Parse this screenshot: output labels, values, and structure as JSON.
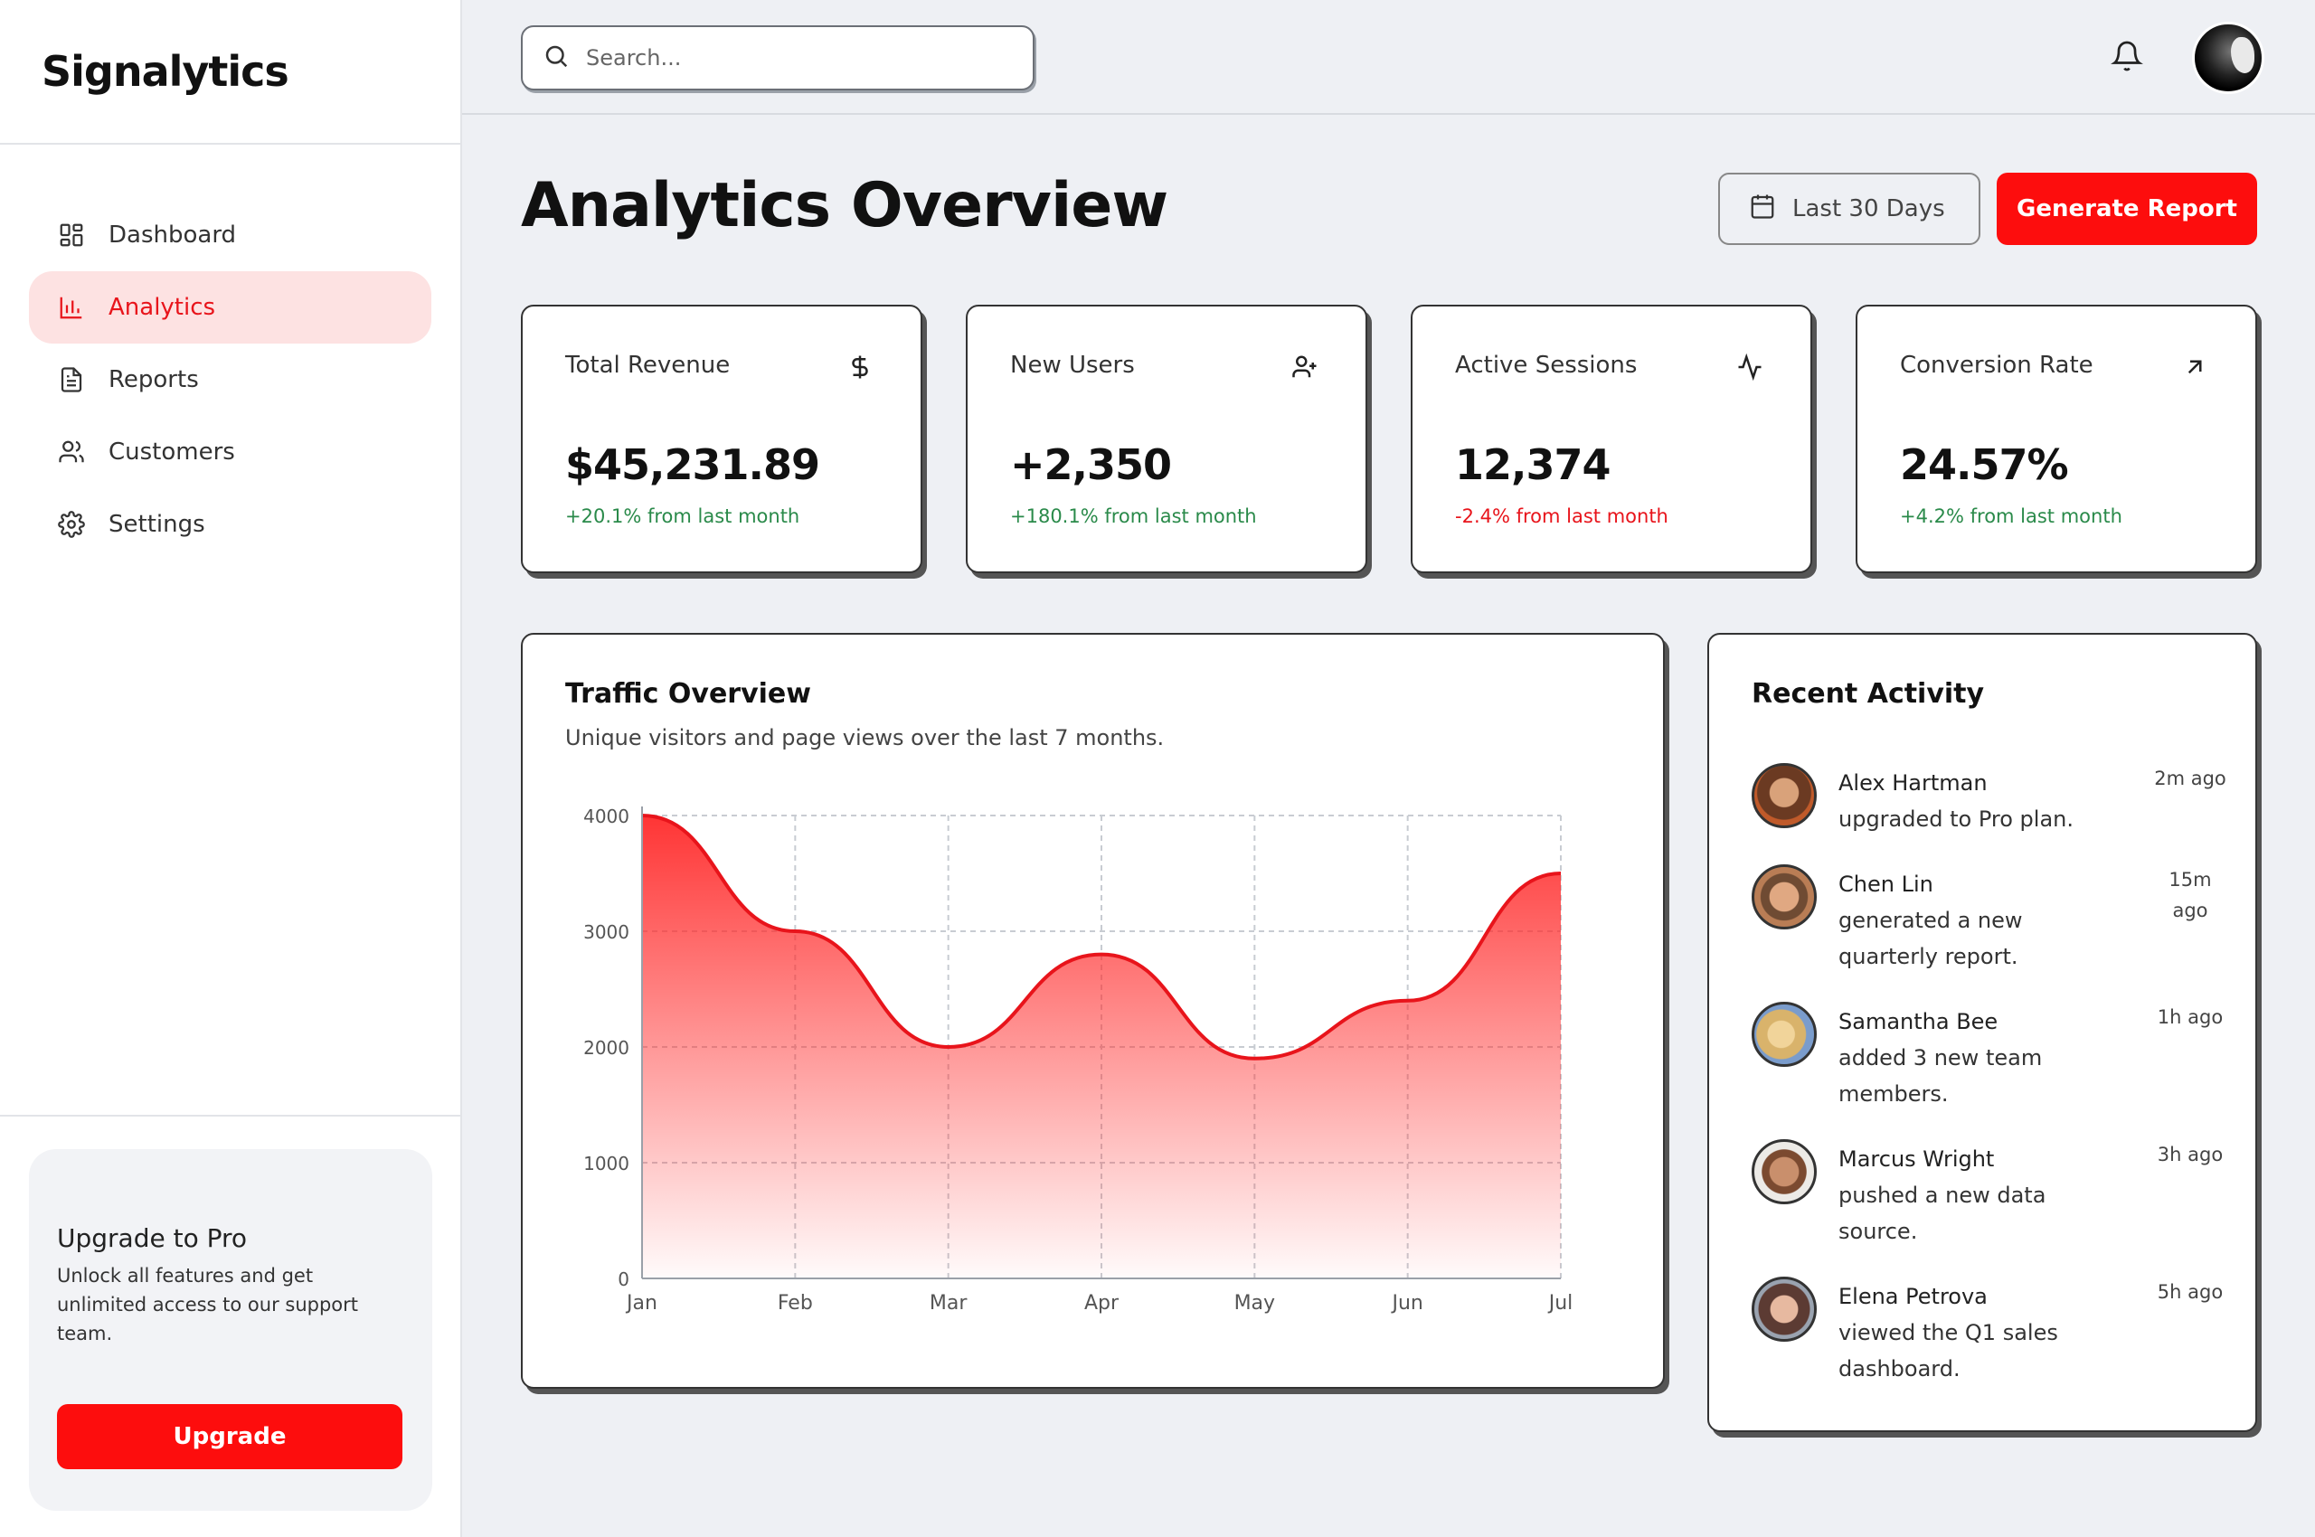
{
  "brand": "Signalytics",
  "sidebar": {
    "items": [
      {
        "label": "Dashboard",
        "icon": "grid-icon"
      },
      {
        "label": "Analytics",
        "icon": "bar-chart-icon",
        "active": true
      },
      {
        "label": "Reports",
        "icon": "file-text-icon"
      },
      {
        "label": "Customers",
        "icon": "users-icon"
      },
      {
        "label": "Settings",
        "icon": "gear-icon"
      }
    ],
    "promo": {
      "title": "Upgrade to Pro",
      "text": "Unlock all features and get unlimited access to our support team.",
      "button": "Upgrade"
    }
  },
  "header": {
    "search_placeholder": "Search..."
  },
  "page": {
    "title": "Analytics Overview",
    "date_range": "Last 30 Days",
    "generate_label": "Generate Report"
  },
  "stats": [
    {
      "label": "Total Revenue",
      "value": "$45,231.89",
      "delta": "+20.1% from last month",
      "icon": "dollar-icon"
    },
    {
      "label": "New Users",
      "value": "+2,350",
      "delta": "+180.1% from last month",
      "icon": "user-plus-icon"
    },
    {
      "label": "Active Sessions",
      "value": "12,374",
      "delta": "-2.4% from last month",
      "icon": "activity-icon"
    },
    {
      "label": "Conversion Rate",
      "value": "24.57%",
      "delta": "+4.2% from last month",
      "icon": "arrow-up-right-icon"
    }
  ],
  "chart_card": {
    "title": "Traffic Overview",
    "subtitle": "Unique visitors and page views over the last 7 months."
  },
  "chart_data": {
    "type": "area",
    "categories": [
      "Jan",
      "Feb",
      "Mar",
      "Apr",
      "May",
      "Jun",
      "Jul"
    ],
    "series": [
      {
        "values": [
          4000,
          3000,
          2000,
          2800,
          1900,
          2400,
          3500
        ]
      }
    ],
    "yticks": [
      "0",
      "1000",
      "2000",
      "3000",
      "4000"
    ],
    "ylim": [
      0,
      4000
    ],
    "grid": true,
    "color": "#e8141b"
  },
  "activity": {
    "title": "Recent Activity",
    "items": [
      {
        "name": "Alex Hartman",
        "action": "upgraded to Pro plan.",
        "time": "2m ago"
      },
      {
        "name": "Chen Lin",
        "action": "generated a new quarterly report.",
        "time": "15m ago"
      },
      {
        "name": "Samantha Bee",
        "action": "added 3 new team members.",
        "time": "1h ago"
      },
      {
        "name": "Marcus Wright",
        "action": "pushed a new data source.",
        "time": "3h ago"
      },
      {
        "name": "Elena Petrova",
        "action": "viewed the Q1 sales dashboard.",
        "time": "5h ago"
      }
    ]
  },
  "colors": {
    "accent": "#fd0d0d",
    "accent_soft": "#fde2e2",
    "positive": "#2a8a4a",
    "negative": "#e8141b",
    "background": "#eef0f4"
  }
}
